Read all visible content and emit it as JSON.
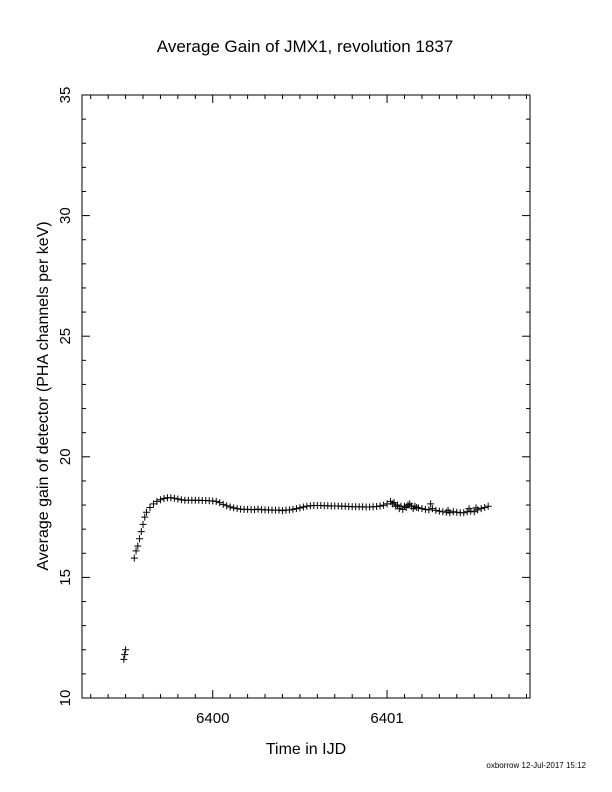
{
  "chart_data": {
    "type": "scatter",
    "title": "Average Gain of JMX1, revolution 1837",
    "xlabel": "Time in IJD",
    "ylabel": "Average gain of detector (PHA channels per keV)",
    "xlim": [
      6399.25,
      6401.82
    ],
    "ylim": [
      10,
      35
    ],
    "x_ticks": [
      6400,
      6401
    ],
    "y_ticks": [
      10,
      15,
      20,
      25,
      30,
      35
    ],
    "grid": false,
    "marker": "+",
    "series": [
      {
        "name": "",
        "points": [
          [
            6399.49,
            11.6
          ],
          [
            6399.495,
            11.8
          ],
          [
            6399.5,
            12.0
          ],
          [
            6399.55,
            15.8
          ],
          [
            6399.56,
            16.1
          ],
          [
            6399.57,
            16.3
          ],
          [
            6399.58,
            16.6
          ],
          [
            6399.59,
            16.9
          ],
          [
            6399.6,
            17.2
          ],
          [
            6399.61,
            17.5
          ],
          [
            6399.62,
            17.7
          ],
          [
            6399.64,
            17.9
          ],
          [
            6399.66,
            18.05
          ],
          [
            6399.68,
            18.15
          ],
          [
            6399.7,
            18.22
          ],
          [
            6399.72,
            18.27
          ],
          [
            6399.74,
            18.3
          ],
          [
            6399.76,
            18.3
          ],
          [
            6399.78,
            18.28
          ],
          [
            6399.8,
            18.25
          ],
          [
            6399.82,
            18.22
          ],
          [
            6399.84,
            18.2
          ],
          [
            6399.86,
            18.2
          ],
          [
            6399.88,
            18.2
          ],
          [
            6399.9,
            18.2
          ],
          [
            6399.92,
            18.2
          ],
          [
            6399.94,
            18.19
          ],
          [
            6399.96,
            18.19
          ],
          [
            6399.98,
            18.18
          ],
          [
            6400.0,
            18.17
          ],
          [
            6400.02,
            18.15
          ],
          [
            6400.04,
            18.1
          ],
          [
            6400.06,
            18.03
          ],
          [
            6400.08,
            17.97
          ],
          [
            6400.1,
            17.92
          ],
          [
            6400.12,
            17.88
          ],
          [
            6400.14,
            17.85
          ],
          [
            6400.16,
            17.83
          ],
          [
            6400.18,
            17.82
          ],
          [
            6400.2,
            17.82
          ],
          [
            6400.22,
            17.81
          ],
          [
            6400.24,
            17.81
          ],
          [
            6400.26,
            17.83
          ],
          [
            6400.28,
            17.81
          ],
          [
            6400.3,
            17.8
          ],
          [
            6400.32,
            17.8
          ],
          [
            6400.34,
            17.79
          ],
          [
            6400.36,
            17.79
          ],
          [
            6400.38,
            17.79
          ],
          [
            6400.4,
            17.77
          ],
          [
            6400.42,
            17.79
          ],
          [
            6400.44,
            17.8
          ],
          [
            6400.46,
            17.82
          ],
          [
            6400.48,
            17.85
          ],
          [
            6400.5,
            17.88
          ],
          [
            6400.52,
            17.92
          ],
          [
            6400.54,
            17.95
          ],
          [
            6400.56,
            17.97
          ],
          [
            6400.58,
            17.98
          ],
          [
            6400.6,
            17.98
          ],
          [
            6400.62,
            17.98
          ],
          [
            6400.64,
            17.97
          ],
          [
            6400.66,
            17.97
          ],
          [
            6400.68,
            17.96
          ],
          [
            6400.7,
            17.96
          ],
          [
            6400.72,
            17.96
          ],
          [
            6400.74,
            17.95
          ],
          [
            6400.76,
            17.95
          ],
          [
            6400.78,
            17.94
          ],
          [
            6400.8,
            17.93
          ],
          [
            6400.82,
            17.93
          ],
          [
            6400.84,
            17.93
          ],
          [
            6400.86,
            17.93
          ],
          [
            6400.88,
            17.92
          ],
          [
            6400.9,
            17.92
          ],
          [
            6400.92,
            17.93
          ],
          [
            6400.94,
            17.94
          ],
          [
            6400.96,
            17.96
          ],
          [
            6400.98,
            17.99
          ],
          [
            6401.0,
            18.05
          ],
          [
            6401.02,
            18.15
          ],
          [
            6401.03,
            18.05
          ],
          [
            6401.04,
            18.1
          ],
          [
            6401.05,
            17.95
          ],
          [
            6401.06,
            18.0
          ],
          [
            6401.07,
            17.85
          ],
          [
            6401.08,
            17.95
          ],
          [
            6401.09,
            17.82
          ],
          [
            6401.1,
            17.95
          ],
          [
            6401.11,
            17.9
          ],
          [
            6401.12,
            18.0
          ],
          [
            6401.13,
            18.05
          ],
          [
            6401.14,
            17.95
          ],
          [
            6401.15,
            17.85
          ],
          [
            6401.16,
            17.95
          ],
          [
            6401.17,
            17.9
          ],
          [
            6401.18,
            17.88
          ],
          [
            6401.2,
            17.85
          ],
          [
            6401.22,
            17.82
          ],
          [
            6401.24,
            17.8
          ],
          [
            6401.25,
            18.05
          ],
          [
            6401.26,
            17.85
          ],
          [
            6401.28,
            17.78
          ],
          [
            6401.3,
            17.75
          ],
          [
            6401.32,
            17.72
          ],
          [
            6401.34,
            17.7
          ],
          [
            6401.35,
            17.78
          ],
          [
            6401.36,
            17.68
          ],
          [
            6401.38,
            17.72
          ],
          [
            6401.4,
            17.7
          ],
          [
            6401.42,
            17.68
          ],
          [
            6401.44,
            17.68
          ],
          [
            6401.46,
            17.72
          ],
          [
            6401.47,
            17.85
          ],
          [
            6401.48,
            17.75
          ],
          [
            6401.5,
            17.72
          ],
          [
            6401.51,
            17.88
          ],
          [
            6401.52,
            17.8
          ],
          [
            6401.54,
            17.85
          ],
          [
            6401.56,
            17.9
          ],
          [
            6401.58,
            17.95
          ]
        ]
      }
    ]
  },
  "footer": {
    "credit": "oxborrow 12-Jul-2017 15:12"
  }
}
